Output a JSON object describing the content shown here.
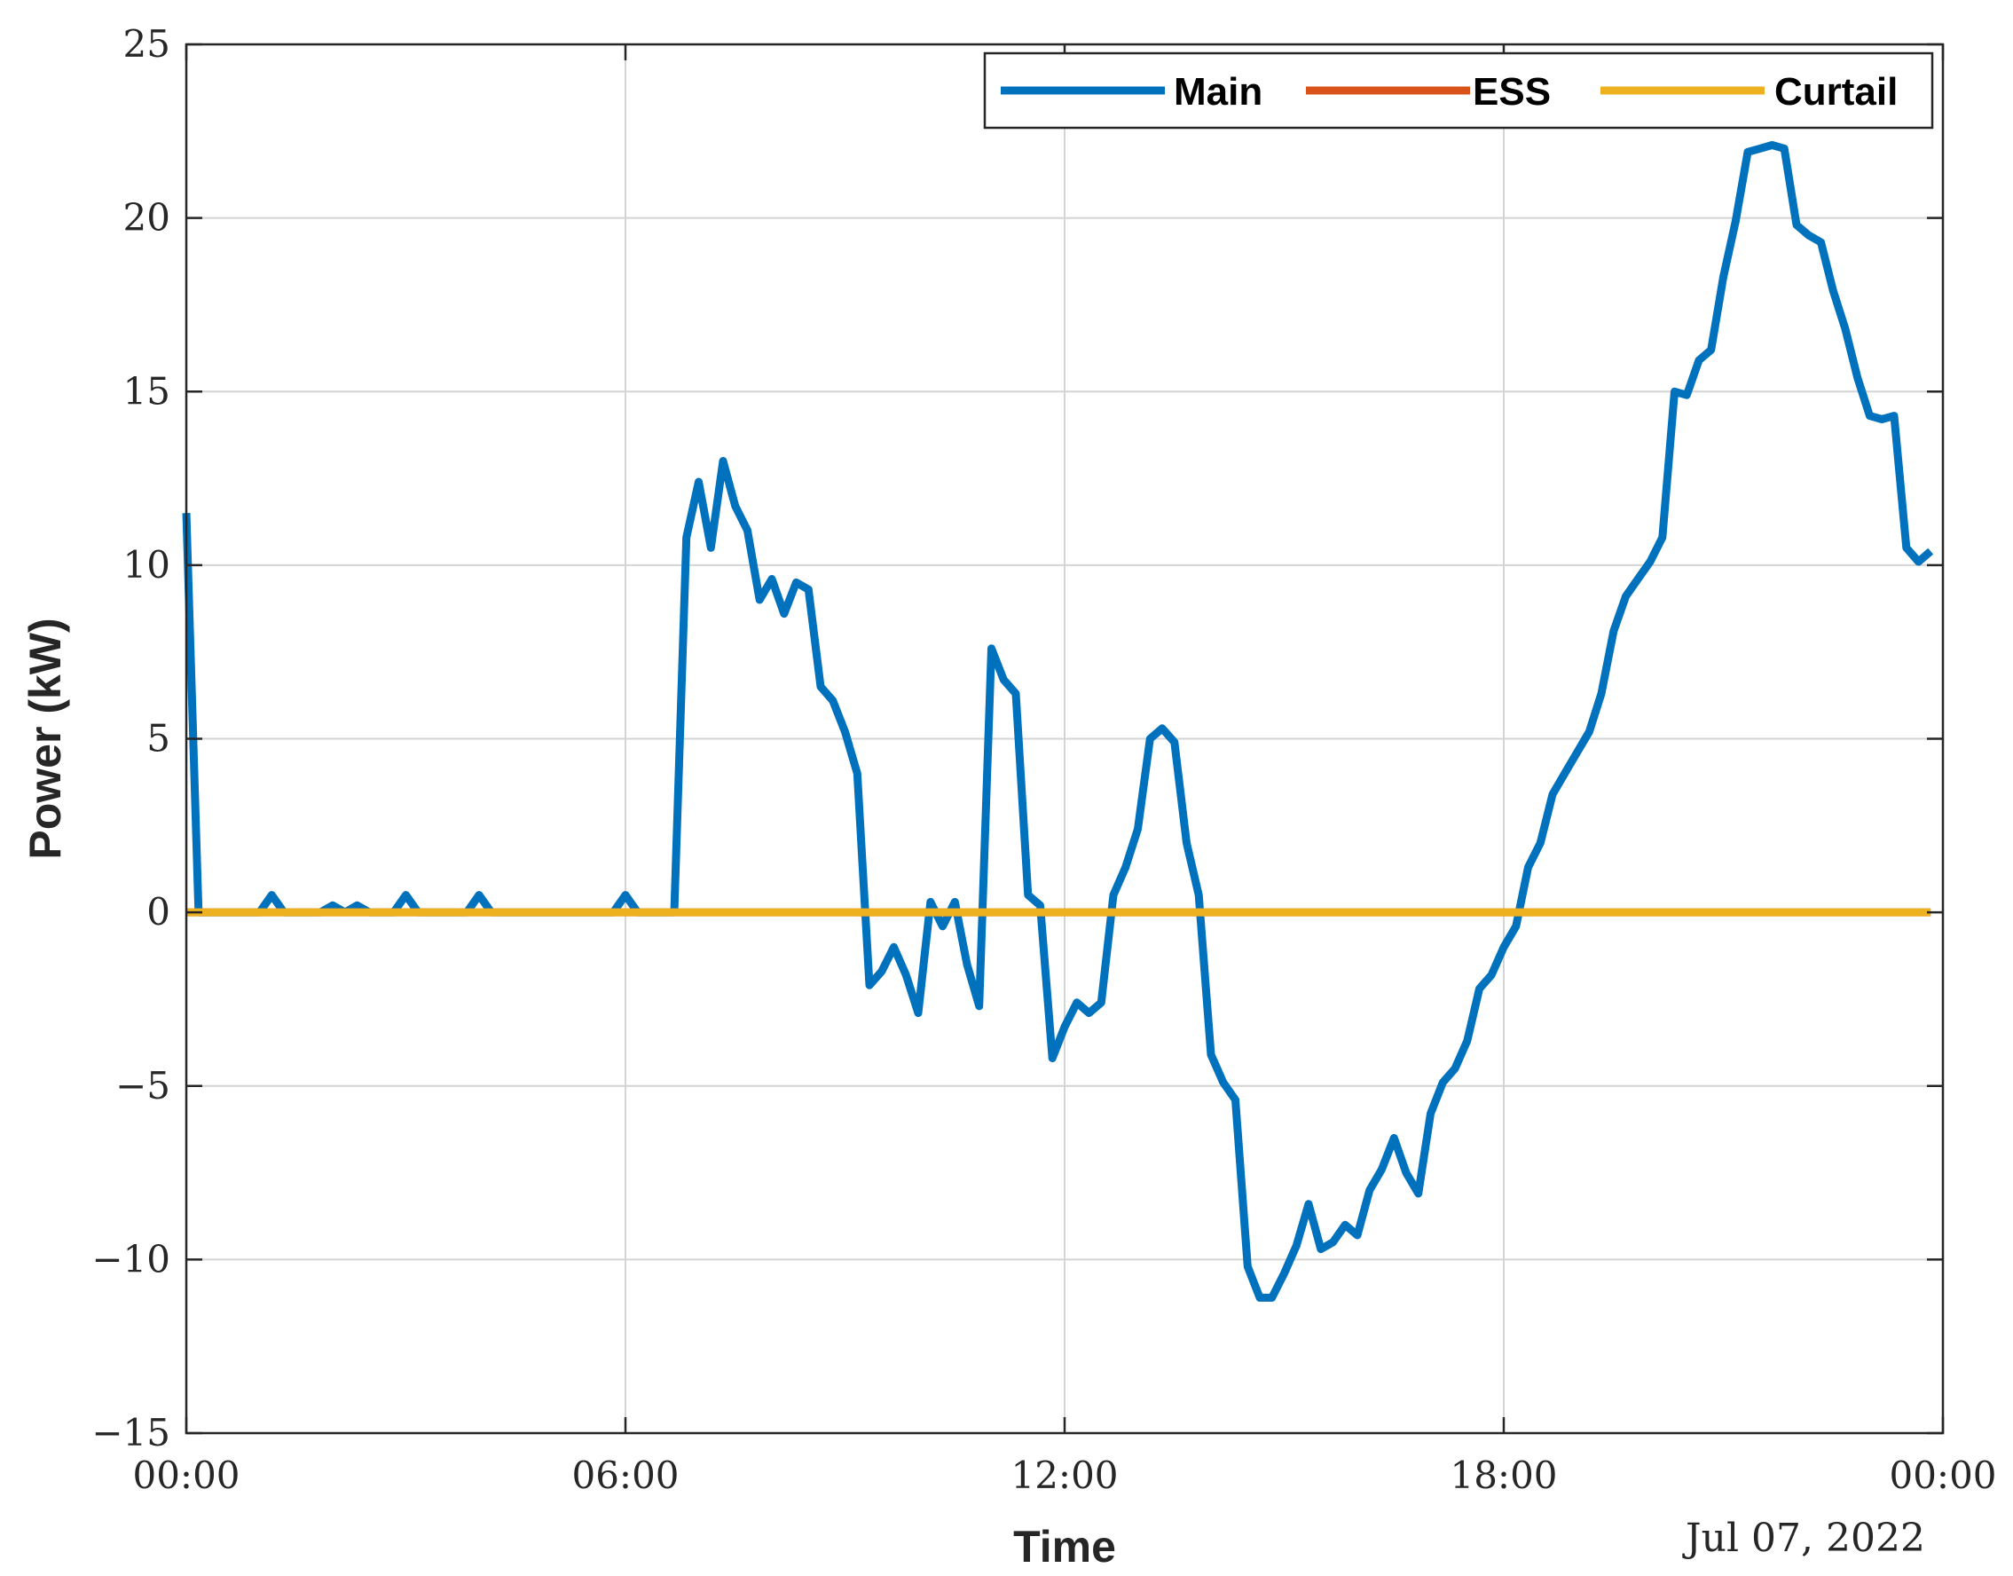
{
  "chart_data": {
    "type": "line",
    "xlabel": "Time",
    "ylabel": "Power (kW)",
    "date_label": "Jul 07, 2022",
    "xlim": [
      0,
      24
    ],
    "ylim": [
      -15,
      25
    ],
    "x_ticks": [
      0,
      6,
      12,
      18,
      24
    ],
    "x_tick_labels": [
      "00:00",
      "06:00",
      "12:00",
      "18:00",
      "00:00"
    ],
    "y_ticks": [
      -15,
      -10,
      -5,
      0,
      5,
      10,
      15,
      20,
      25
    ],
    "y_tick_labels": [
      "−15",
      "−10",
      "−5",
      "0",
      "5",
      "10",
      "15",
      "20",
      "25"
    ],
    "grid": true,
    "legend": {
      "placement": "top-right",
      "orientation": "horizontal"
    },
    "series": [
      {
        "name": "Main",
        "color": "#0072BD",
        "x": [
          0,
          0.167,
          0.333,
          1.0,
          1.167,
          1.333,
          1.833,
          2.0,
          2.167,
          2.333,
          2.5,
          2.833,
          3.0,
          3.167,
          3.833,
          4.0,
          4.167,
          5.833,
          6.0,
          6.167,
          6.667,
          6.833,
          7.0,
          7.167,
          7.333,
          7.5,
          7.667,
          7.833,
          8.0,
          8.167,
          8.333,
          8.5,
          8.667,
          8.833,
          9.0,
          9.167,
          9.333,
          9.5,
          9.667,
          9.833,
          10.0,
          10.167,
          10.333,
          10.5,
          10.667,
          10.833,
          11.0,
          11.167,
          11.333,
          11.5,
          11.667,
          11.833,
          12.0,
          12.167,
          12.333,
          12.5,
          12.667,
          12.833,
          13.0,
          13.167,
          13.333,
          13.5,
          13.667,
          13.833,
          14.0,
          14.167,
          14.333,
          14.5,
          14.667,
          14.833,
          15.0,
          15.167,
          15.333,
          15.5,
          15.667,
          15.833,
          16.0,
          16.167,
          16.333,
          16.5,
          16.667,
          16.833,
          17.0,
          17.167,
          17.333,
          17.5,
          17.667,
          17.833,
          18.0,
          18.167,
          18.333,
          18.5,
          18.667,
          18.833,
          19.0,
          19.167,
          19.333,
          19.5,
          19.667,
          19.833,
          20.0,
          20.167,
          20.333,
          20.5,
          20.667,
          20.833,
          21.0,
          21.167,
          21.333,
          21.5,
          21.667,
          21.833,
          22.0,
          22.167,
          22.333,
          22.5,
          22.667,
          22.833,
          23.0,
          23.167,
          23.333,
          23.5,
          23.667,
          23.833
        ],
        "y": [
          11.5,
          0,
          0,
          0,
          0.5,
          0,
          0,
          0.2,
          0,
          0.2,
          0,
          0,
          0.5,
          0,
          0,
          0.5,
          0,
          0,
          0.5,
          0,
          0,
          10.8,
          12.4,
          10.5,
          13.0,
          11.7,
          11.0,
          9.0,
          9.6,
          8.6,
          9.5,
          9.3,
          6.5,
          6.1,
          5.2,
          4.0,
          -2.1,
          -1.7,
          -1.0,
          -1.8,
          -2.9,
          0.3,
          -0.4,
          0.3,
          -1.5,
          -2.7,
          7.6,
          6.7,
          6.3,
          0.5,
          0.2,
          -4.2,
          -3.3,
          -2.6,
          -2.9,
          -2.6,
          0.5,
          1.3,
          2.4,
          5.0,
          5.3,
          4.9,
          2.0,
          0.5,
          -4.1,
          -4.9,
          -5.4,
          -10.2,
          -11.1,
          -11.1,
          -10.4,
          -9.6,
          -8.4,
          -9.7,
          -9.5,
          -9.0,
          -9.3,
          -8.0,
          -7.4,
          -6.5,
          -7.5,
          -8.1,
          -5.8,
          -4.9,
          -4.5,
          -3.7,
          -2.2,
          -1.8,
          -1.0,
          -0.4,
          1.3,
          2.0,
          3.4,
          4.0,
          4.6,
          5.2,
          6.3,
          8.1,
          9.1,
          9.6,
          10.1,
          10.8,
          15.0,
          14.9,
          15.9,
          16.2,
          18.3,
          19.9,
          21.9,
          22.0,
          22.1,
          22.0,
          19.8,
          19.5,
          19.3,
          17.9,
          16.8,
          15.4,
          14.3,
          14.2,
          14.3,
          10.5,
          10.1,
          10.4
        ]
      },
      {
        "name": "ESS",
        "color": "#D95319",
        "x": [
          0,
          23.833
        ],
        "y": [
          0,
          0
        ]
      },
      {
        "name": "Curtail",
        "color": "#EDB120",
        "x": [
          0,
          23.833
        ],
        "y": [
          0,
          0
        ]
      }
    ]
  }
}
